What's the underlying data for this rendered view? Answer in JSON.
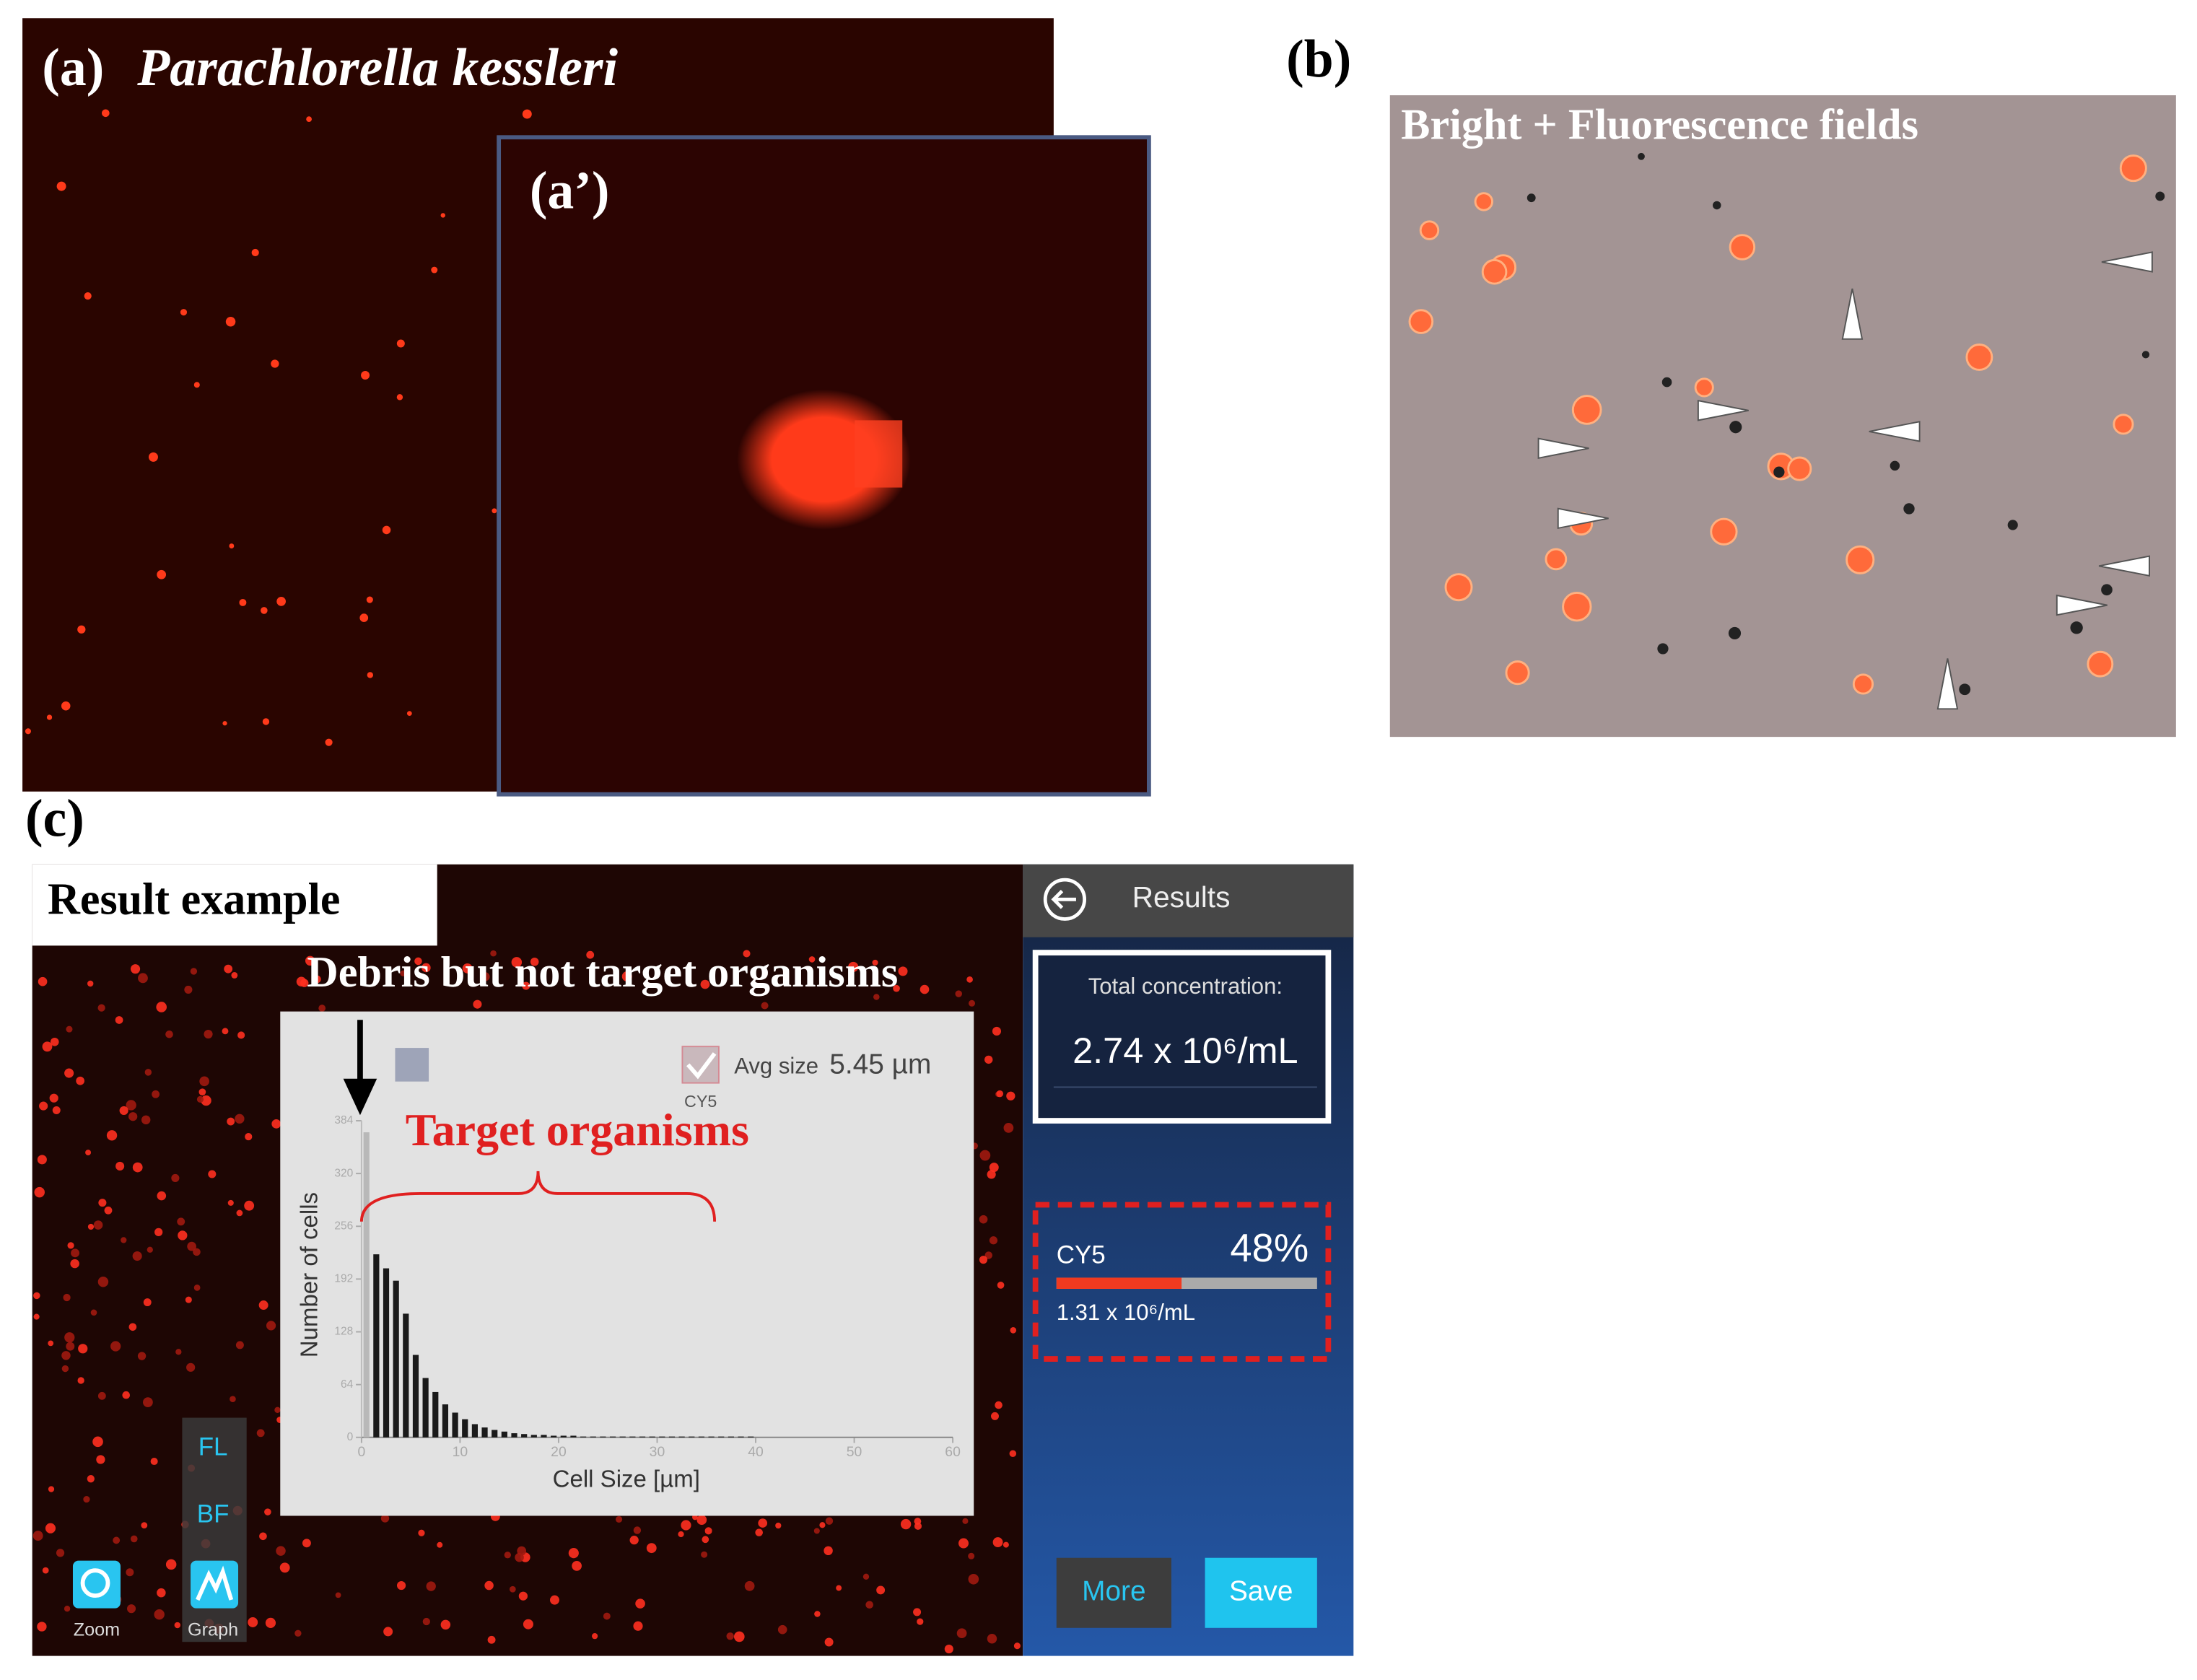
{
  "panel_a": {
    "label": "(a)",
    "species": "Parachlorella kessleri",
    "inset_label": "(a’)"
  },
  "panel_b": {
    "label": "(b)",
    "caption": "Bright + Fluorescence fields"
  },
  "panel_c": {
    "label": "(c)",
    "tag": "Result example",
    "debris_note": "Debris but not target organisms",
    "target_note": "Target organisms",
    "app": {
      "header": "Results",
      "total_label": "Total concentration:",
      "total_value": "2.74 x 10⁶/mL",
      "channel": "CY5",
      "channel_percent": {
        "value": 48,
        "label": "48%"
      },
      "channel_value": "1.31 x 10⁶/mL",
      "more": "More",
      "save": "Save",
      "fl": "FL",
      "bf": "BF",
      "zoom": "Zoom",
      "graph": "Graph"
    },
    "histogram": {
      "type": "histogram",
      "avg_label": "Avg size",
      "avg_value": "5.45 µm",
      "channel_checkbox": "CY5",
      "x_label": "Cell Size [µm]",
      "y_label": "Number of cells",
      "xlim": [
        0,
        60
      ],
      "ylim": [
        0,
        384
      ],
      "xticks": [
        0,
        10,
        20,
        30,
        40,
        50,
        60
      ],
      "yticks": [
        0,
        64,
        128,
        192,
        256,
        320,
        384
      ],
      "bins": [
        0,
        1,
        2,
        3,
        4,
        5,
        6,
        7,
        8,
        9,
        10,
        11,
        12,
        13,
        14,
        15,
        16,
        17,
        18,
        19,
        20,
        21,
        22,
        23,
        24,
        25,
        26,
        27,
        28,
        29,
        30,
        31,
        32,
        33,
        34,
        35,
        36,
        37,
        38,
        39,
        40
      ],
      "values": [
        370,
        222,
        205,
        190,
        150,
        100,
        72,
        55,
        40,
        30,
        22,
        16,
        12,
        9,
        7,
        5,
        4,
        3,
        3,
        2,
        2,
        2,
        1,
        1,
        1,
        1,
        1,
        1,
        1,
        1,
        1,
        1,
        1,
        1,
        1,
        1,
        1,
        1,
        1,
        1
      ],
      "colors": [
        "#b8b8b8",
        "#1a1a1a",
        "#1a1a1a",
        "#1a1a1a",
        "#1a1a1a",
        "#1a1a1a",
        "#1a1a1a",
        "#1a1a1a",
        "#1a1a1a",
        "#1a1a1a",
        "#1a1a1a",
        "#1a1a1a",
        "#1a1a1a",
        "#1a1a1a",
        "#1a1a1a",
        "#1a1a1a",
        "#1a1a1a",
        "#1a1a1a",
        "#1a1a1a",
        "#1a1a1a",
        "#1a1a1a",
        "#1a1a1a",
        "#1a1a1a",
        "#1a1a1a",
        "#1a1a1a",
        "#1a1a1a",
        "#1a1a1a",
        "#1a1a1a",
        "#1a1a1a",
        "#1a1a1a",
        "#1a1a1a",
        "#1a1a1a",
        "#1a1a1a",
        "#1a1a1a",
        "#1a1a1a",
        "#1a1a1a",
        "#1a1a1a",
        "#1a1a1a",
        "#1a1a1a",
        "#1a1a1a"
      ]
    }
  }
}
